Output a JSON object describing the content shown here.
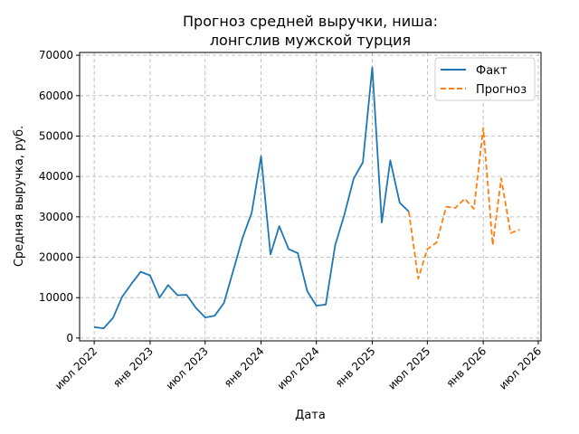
{
  "chart_data": {
    "type": "line",
    "title": [
      "Прогноз средней выручки, ниша:",
      "лонгслив мужской турция"
    ],
    "xlabel": "Дата",
    "ylabel": "Средняя выручка, руб.",
    "ylim": [
      0,
      70000
    ],
    "y_ticks": [
      0,
      10000,
      20000,
      30000,
      40000,
      50000,
      60000,
      70000
    ],
    "x_range": [
      "2022-05-14",
      "2026-07-10"
    ],
    "x_ticks": [
      {
        "date": "2022-07-01",
        "label": "июл 2022"
      },
      {
        "date": "2023-01-01",
        "label": "янв 2023"
      },
      {
        "date": "2023-07-01",
        "label": "июл 2023"
      },
      {
        "date": "2024-01-01",
        "label": "янв 2024"
      },
      {
        "date": "2024-07-01",
        "label": "июл 2024"
      },
      {
        "date": "2025-01-01",
        "label": "янв 2025"
      },
      {
        "date": "2025-07-01",
        "label": "июл 2025"
      },
      {
        "date": "2026-01-01",
        "label": "янв 2026"
      },
      {
        "date": "2026-07-01",
        "label": "июл 2026"
      }
    ],
    "grid": true,
    "legend": "top-right",
    "series": [
      {
        "name": "Факт",
        "color": "#1f77b4",
        "style": "solid",
        "x": [
          "2022-07-01",
          "2022-08-01",
          "2022-09-01",
          "2022-10-01",
          "2022-11-01",
          "2022-12-01",
          "2023-01-01",
          "2023-02-01",
          "2023-03-01",
          "2023-04-01",
          "2023-05-01",
          "2023-06-01",
          "2023-07-01",
          "2023-08-01",
          "2023-09-01",
          "2023-10-01",
          "2023-11-01",
          "2023-12-01",
          "2024-01-01",
          "2024-02-01",
          "2024-03-01",
          "2024-04-01",
          "2024-05-01",
          "2024-06-01",
          "2024-07-01",
          "2024-08-01",
          "2024-09-01",
          "2024-10-01",
          "2024-11-01",
          "2024-12-01",
          "2025-01-01",
          "2025-02-01",
          "2025-03-01",
          "2025-04-01",
          "2025-05-01"
        ],
        "values": [
          2700,
          2400,
          5000,
          10200,
          13500,
          16400,
          15500,
          10000,
          13100,
          10600,
          10700,
          7400,
          5100,
          5500,
          8700,
          16600,
          24800,
          31000,
          45000,
          20700,
          27700,
          22000,
          21000,
          11600,
          8000,
          8300,
          23000,
          30500,
          39500,
          43500,
          67000,
          28600,
          44000,
          33500,
          31300
        ]
      },
      {
        "name": "Прогноз",
        "color": "#ff7f0e",
        "style": "dashed",
        "x": [
          "2025-05-01",
          "2025-06-01",
          "2025-07-01",
          "2025-08-01",
          "2025-09-01",
          "2025-10-01",
          "2025-11-01",
          "2025-12-01",
          "2026-01-01",
          "2026-02-01",
          "2026-03-01",
          "2026-04-01",
          "2026-05-01"
        ],
        "values": [
          31300,
          14700,
          22000,
          23700,
          32500,
          32200,
          34500,
          32000,
          52000,
          23000,
          39500,
          26000,
          26800
        ]
      }
    ]
  }
}
